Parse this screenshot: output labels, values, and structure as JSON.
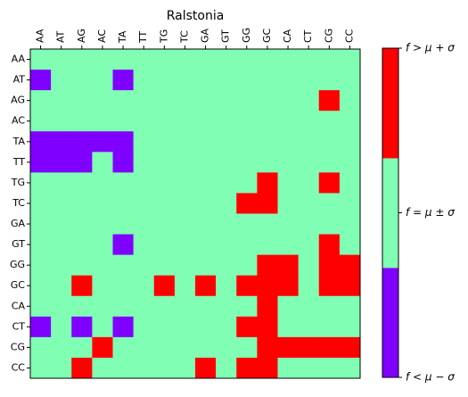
{
  "chart_data": {
    "type": "heatmap",
    "title": "Ralstonia",
    "x_labels": [
      "AA",
      "AT",
      "AG",
      "AC",
      "TA",
      "TT",
      "TG",
      "TC",
      "GA",
      "GT",
      "GG",
      "GC",
      "CA",
      "CT",
      "CG",
      "CC"
    ],
    "y_labels": [
      "AA",
      "AT",
      "AG",
      "AC",
      "TA",
      "TT",
      "TG",
      "TC",
      "GA",
      "GT",
      "GG",
      "GC",
      "CA",
      "CT",
      "CG",
      "CC"
    ],
    "x_axis_position": "top",
    "category_encoding": {
      "-1": "below",
      "0": "within",
      "1": "above"
    },
    "matrix": [
      [
        0,
        0,
        0,
        0,
        0,
        0,
        0,
        0,
        0,
        0,
        0,
        0,
        0,
        0,
        0,
        0
      ],
      [
        -1,
        0,
        0,
        0,
        -1,
        0,
        0,
        0,
        0,
        0,
        0,
        0,
        0,
        0,
        0,
        0
      ],
      [
        0,
        0,
        0,
        0,
        0,
        0,
        0,
        0,
        0,
        0,
        0,
        0,
        0,
        0,
        1,
        0
      ],
      [
        0,
        0,
        0,
        0,
        0,
        0,
        0,
        0,
        0,
        0,
        0,
        0,
        0,
        0,
        0,
        0
      ],
      [
        -1,
        -1,
        -1,
        -1,
        -1,
        0,
        0,
        0,
        0,
        0,
        0,
        0,
        0,
        0,
        0,
        0
      ],
      [
        -1,
        -1,
        -1,
        0,
        -1,
        0,
        0,
        0,
        0,
        0,
        0,
        0,
        0,
        0,
        0,
        0
      ],
      [
        0,
        0,
        0,
        0,
        0,
        0,
        0,
        0,
        0,
        0,
        0,
        1,
        0,
        0,
        1,
        0
      ],
      [
        0,
        0,
        0,
        0,
        0,
        0,
        0,
        0,
        0,
        0,
        1,
        1,
        0,
        0,
        0,
        0
      ],
      [
        0,
        0,
        0,
        0,
        0,
        0,
        0,
        0,
        0,
        0,
        0,
        0,
        0,
        0,
        0,
        0
      ],
      [
        0,
        0,
        0,
        0,
        -1,
        0,
        0,
        0,
        0,
        0,
        0,
        0,
        0,
        0,
        1,
        0
      ],
      [
        0,
        0,
        0,
        0,
        0,
        0,
        0,
        0,
        0,
        0,
        0,
        1,
        1,
        0,
        1,
        1
      ],
      [
        0,
        0,
        1,
        0,
        0,
        0,
        1,
        0,
        1,
        0,
        1,
        1,
        1,
        0,
        1,
        1
      ],
      [
        0,
        0,
        0,
        0,
        0,
        0,
        0,
        0,
        0,
        0,
        0,
        1,
        0,
        0,
        0,
        0
      ],
      [
        -1,
        0,
        -1,
        0,
        -1,
        0,
        0,
        0,
        0,
        0,
        1,
        1,
        0,
        0,
        0,
        0
      ],
      [
        0,
        0,
        0,
        1,
        0,
        0,
        0,
        0,
        0,
        0,
        0,
        1,
        1,
        1,
        1,
        1
      ],
      [
        0,
        0,
        1,
        0,
        0,
        0,
        0,
        0,
        1,
        0,
        1,
        1,
        0,
        0,
        0,
        0
      ]
    ],
    "colorbar": {
      "categories": [
        {
          "key": "below",
          "label": "f < μ − σ",
          "color": "#8000ff"
        },
        {
          "key": "within",
          "label": "f = μ ± σ",
          "color": "#80ffb4"
        },
        {
          "key": "above",
          "label": "f > μ + σ",
          "color": "#ff0000"
        }
      ]
    }
  }
}
